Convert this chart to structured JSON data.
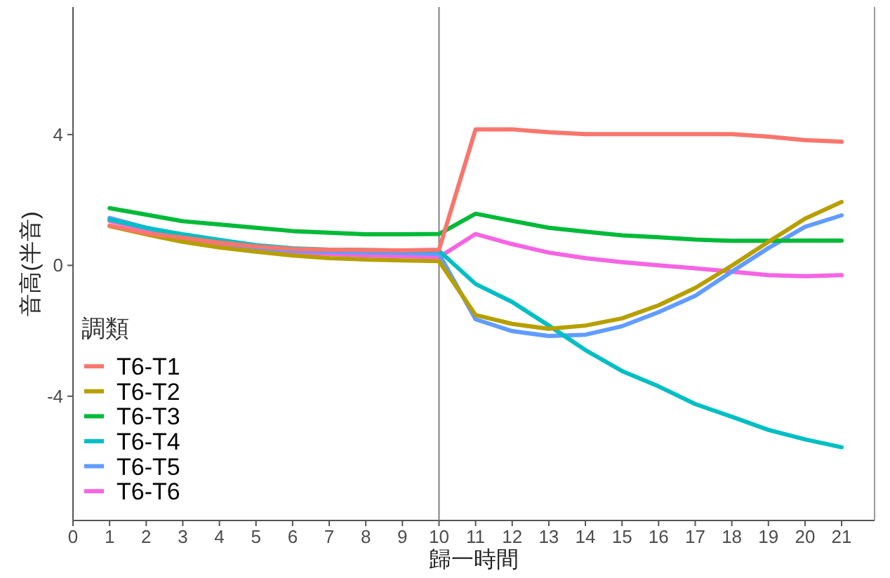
{
  "chart_data": {
    "type": "line",
    "xlabel": "歸一時間",
    "ylabel": "音高(半音)",
    "legend_title": "調類",
    "legend": "bottom left",
    "grid": false,
    "x": [
      1,
      2,
      3,
      4,
      5,
      6,
      7,
      8,
      9,
      10,
      11,
      12,
      13,
      14,
      15,
      16,
      17,
      18,
      19,
      20,
      21
    ],
    "xlim": [
      0,
      21.9
    ],
    "xticks": [
      0,
      1,
      2,
      3,
      4,
      5,
      6,
      7,
      8,
      9,
      10,
      11,
      12,
      13,
      14,
      15,
      16,
      17,
      18,
      19,
      20,
      21
    ],
    "ylim": [
      -7.8,
      7.9
    ],
    "yticks": [
      -4,
      0,
      4
    ],
    "ref_lines": [
      {
        "axis": "x",
        "value": 10,
        "color": "#808080"
      }
    ],
    "series": [
      {
        "name": "T6-T1",
        "color": "#F8766D",
        "values": [
          1.22,
          0.98,
          0.85,
          0.7,
          0.58,
          0.5,
          0.48,
          0.47,
          0.46,
          0.48,
          4.16,
          4.16,
          4.07,
          4.01,
          4.01,
          4.01,
          4.01,
          4.01,
          3.94,
          3.83,
          3.78
        ]
      },
      {
        "name": "T6-T2",
        "color": "#B79F00",
        "values": [
          1.2,
          0.95,
          0.72,
          0.55,
          0.42,
          0.3,
          0.22,
          0.18,
          0.15,
          0.13,
          -1.52,
          -1.79,
          -1.94,
          -1.84,
          -1.62,
          -1.22,
          -0.69,
          -0.01,
          0.72,
          1.43,
          1.94
        ]
      },
      {
        "name": "T6-T3",
        "color": "#00BA38",
        "values": [
          1.75,
          1.55,
          1.35,
          1.25,
          1.15,
          1.05,
          1.0,
          0.95,
          0.95,
          0.96,
          1.58,
          1.36,
          1.15,
          1.03,
          0.92,
          0.86,
          0.79,
          0.75,
          0.75,
          0.76,
          0.76
        ]
      },
      {
        "name": "T6-T4",
        "color": "#00BFC4",
        "values": [
          1.4,
          1.15,
          0.95,
          0.78,
          0.62,
          0.52,
          0.48,
          0.47,
          0.45,
          0.45,
          -0.57,
          -1.12,
          -1.84,
          -2.59,
          -3.23,
          -3.7,
          -4.24,
          -4.63,
          -5.03,
          -5.32,
          -5.56
        ]
      },
      {
        "name": "T6-T5",
        "color": "#619CFF",
        "values": [
          1.45,
          1.15,
          0.9,
          0.7,
          0.55,
          0.45,
          0.42,
          0.4,
          0.38,
          0.35,
          -1.65,
          -2.01,
          -2.16,
          -2.12,
          -1.86,
          -1.43,
          -0.93,
          -0.19,
          0.53,
          1.18,
          1.53
        ]
      },
      {
        "name": "T6-T6",
        "color": "#F564E3",
        "values": [
          1.36,
          1.1,
          0.8,
          0.62,
          0.5,
          0.4,
          0.35,
          0.3,
          0.28,
          0.25,
          0.96,
          0.65,
          0.39,
          0.22,
          0.1,
          0.0,
          -0.09,
          -0.19,
          -0.3,
          -0.33,
          -0.3
        ]
      }
    ]
  }
}
